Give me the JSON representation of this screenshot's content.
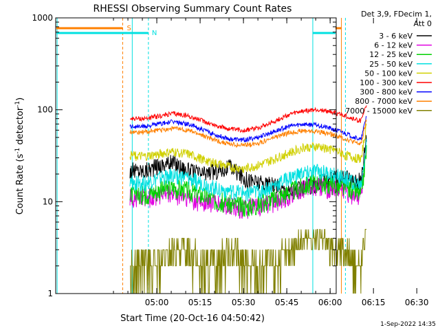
{
  "chart_data": {
    "type": "line",
    "title": "RHESSI Observing Summary Count Rates",
    "xlabel": "Start Time (20-Oct-16 04:50:42)",
    "ylabel_main": "Count Rate (s",
    "ylabel_sup1": "-1",
    "ylabel_mid": " detector",
    "ylabel_sup2": "-1",
    "ylabel_end": ")",
    "yscale": "log",
    "ylim": [
      1,
      1000
    ],
    "xlim_minutes": [
      -25.7,
      71.4
    ],
    "xticks": [
      {
        "label": "05:00",
        "m": 9.3
      },
      {
        "label": "05:15",
        "m": 24.3
      },
      {
        "label": "05:30",
        "m": 39.3
      },
      {
        "label": "05:45",
        "m": 54.3
      },
      {
        "label": "06:00",
        "m": 69.3
      },
      {
        "label": "06:15",
        "m": 84.3
      },
      {
        "label": "06:30",
        "m": 99.3
      }
    ],
    "yticks": [
      {
        "label": "1",
        "v": 1
      },
      {
        "label": "10",
        "v": 10
      },
      {
        "label": "100",
        "v": 100
      },
      {
        "label": "1000",
        "v": 1000
      }
    ],
    "legend_header": [
      "Det 3,9, FDecim 1,",
      "Att 0"
    ],
    "legend_position": "top-right",
    "annotations": {
      "saa_label": "S",
      "night_label": "N",
      "timestamp": "1-Sep-2022 14:35"
    },
    "series": [
      {
        "name": "3 - 6 keV",
        "color": "#000000",
        "x": [
          0,
          5,
          10,
          15,
          20,
          25,
          30,
          35,
          40,
          45,
          50,
          55,
          60,
          65,
          70,
          75,
          78,
          80,
          82
        ],
        "y": [
          22,
          22,
          25,
          27,
          22,
          20,
          22,
          24,
          18,
          16,
          15,
          13,
          14,
          16,
          18,
          18,
          17,
          17,
          60
        ]
      },
      {
        "name": "6 - 12 keV",
        "color": "#e000e0",
        "x": [
          0,
          5,
          10,
          15,
          20,
          25,
          30,
          35,
          40,
          45,
          50,
          55,
          60,
          65,
          70,
          75,
          78,
          80,
          82
        ],
        "y": [
          11,
          11,
          12,
          12,
          11,
          10,
          9.5,
          9,
          8.5,
          9,
          10,
          12,
          14,
          15,
          14,
          13,
          12,
          11,
          35
        ]
      },
      {
        "name": "12 - 25 keV",
        "color": "#00d000",
        "x": [
          0,
          5,
          10,
          15,
          20,
          25,
          30,
          35,
          40,
          45,
          50,
          55,
          60,
          65,
          70,
          75,
          78,
          80,
          82
        ],
        "y": [
          12,
          12,
          13.5,
          14.5,
          13.5,
          12,
          10.5,
          9.5,
          9,
          9.5,
          11,
          13,
          15,
          16.5,
          15.5,
          14,
          13,
          12,
          38
        ]
      },
      {
        "name": "25 - 50 keV",
        "color": "#00e0e0",
        "x": [
          0,
          5,
          10,
          15,
          20,
          25,
          30,
          35,
          40,
          45,
          50,
          55,
          60,
          65,
          70,
          75,
          78,
          80,
          82
        ],
        "y": [
          16,
          16,
          18,
          19.5,
          18,
          16,
          14,
          13,
          12.5,
          13,
          15,
          18,
          20.5,
          21.5,
          20,
          18,
          16.5,
          15,
          48
        ]
      },
      {
        "name": "50 - 100 keV",
        "color": "#d0d000",
        "x": [
          0,
          5,
          10,
          15,
          20,
          25,
          30,
          35,
          40,
          45,
          50,
          55,
          60,
          65,
          70,
          75,
          78,
          80,
          82
        ],
        "y": [
          32,
          31,
          33,
          35,
          33,
          29,
          26,
          23.5,
          23,
          25,
          29,
          34,
          39,
          40,
          37,
          32,
          30,
          29,
          70
        ]
      },
      {
        "name": "100 - 300 keV",
        "color": "#ff0000",
        "x": [
          0,
          5,
          10,
          15,
          20,
          25,
          30,
          35,
          40,
          45,
          50,
          55,
          60,
          65,
          70,
          75,
          78,
          80,
          82
        ],
        "y": [
          80,
          80,
          85,
          91,
          86,
          76,
          67,
          61,
          60,
          65,
          75,
          88,
          97,
          100,
          95,
          85,
          78,
          76,
          115
        ]
      },
      {
        "name": "300 - 800 keV",
        "color": "#0000ff",
        "x": [
          0,
          5,
          10,
          15,
          20,
          25,
          30,
          35,
          40,
          45,
          50,
          55,
          60,
          65,
          70,
          75,
          78,
          80,
          82
        ],
        "y": [
          66,
          66,
          70,
          74,
          70,
          61,
          53,
          48,
          47,
          51,
          58,
          66,
          70,
          68,
          62,
          55,
          50,
          47,
          90
        ]
      },
      {
        "name": "800 - 7000 keV",
        "color": "#ff8000",
        "x": [
          0,
          5,
          10,
          15,
          20,
          25,
          30,
          35,
          40,
          45,
          50,
          55,
          60,
          65,
          70,
          75,
          78,
          80,
          82
        ],
        "y": [
          57,
          57,
          60,
          63,
          60,
          53,
          46,
          42,
          41,
          44,
          50,
          56,
          59,
          58,
          54,
          48,
          44,
          42,
          80
        ]
      },
      {
        "name": "7000 - 15000 keV",
        "color": "#808000",
        "x": [
          0,
          5,
          10,
          15,
          20,
          25,
          30,
          35,
          40,
          45,
          50,
          55,
          60,
          65,
          70,
          75,
          78,
          80,
          82
        ],
        "y": [
          2,
          2,
          2,
          3,
          3,
          2,
          2,
          3,
          2,
          2,
          2,
          3,
          4,
          4,
          3,
          3,
          2,
          2,
          6
        ]
      }
    ]
  }
}
